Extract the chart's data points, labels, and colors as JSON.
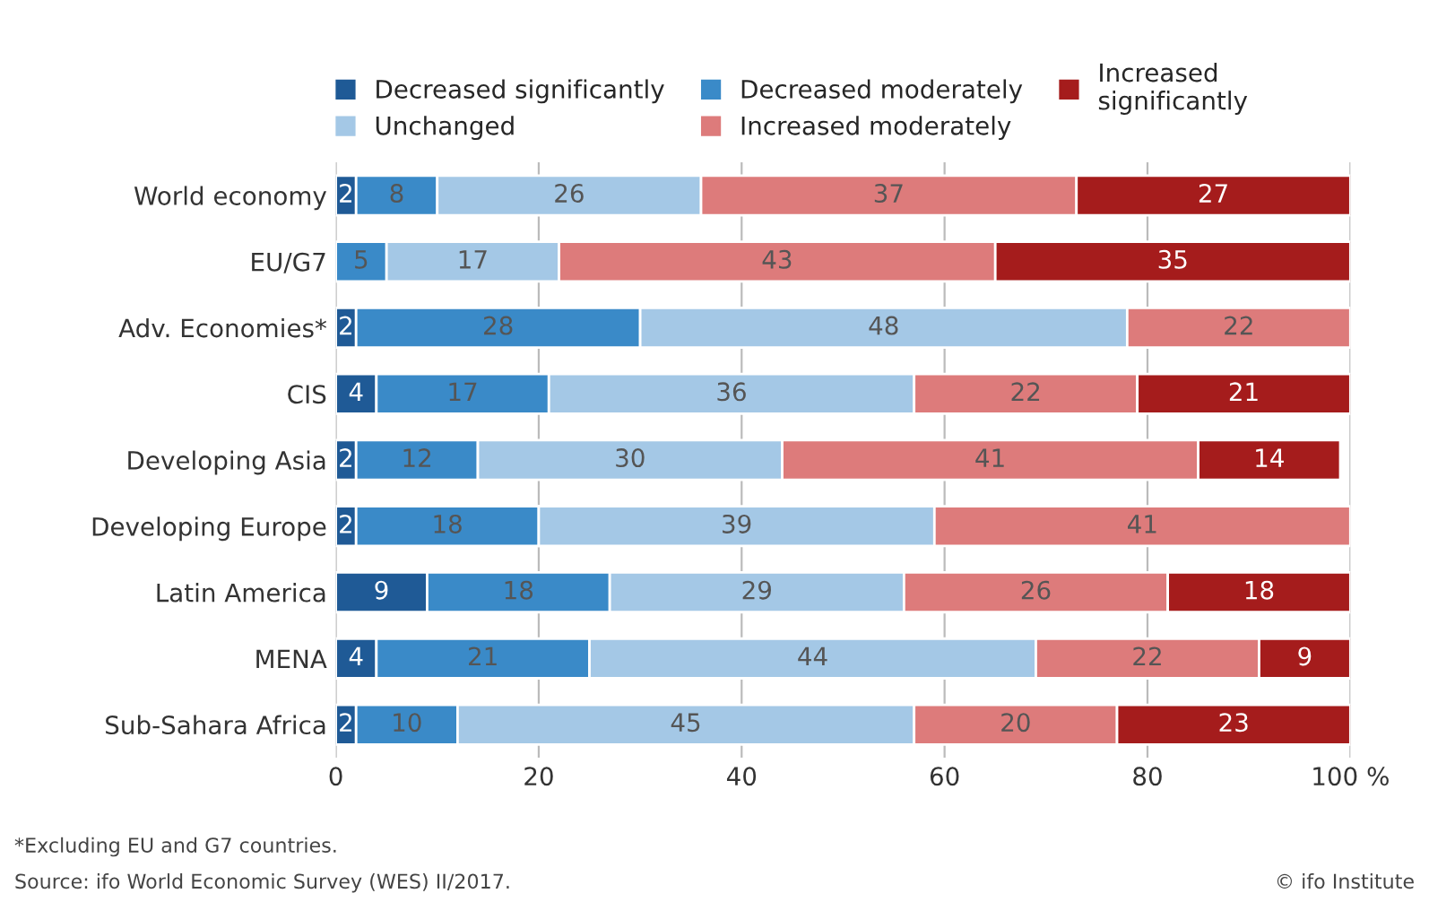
{
  "chart_data": {
    "type": "bar",
    "orientation": "horizontal",
    "stacked": true,
    "data_labels": true,
    "grid": "x",
    "legend": "top",
    "categories": [
      "World economy",
      "EU/G7",
      "Adv. Economies*",
      "CIS",
      "Developing Asia",
      "Developing Europe",
      "Latin America",
      "MENA",
      "Sub-Sahara Africa"
    ],
    "series": [
      {
        "name": "Decreased significantly",
        "color": "#1f5a96",
        "values": [
          2,
          null,
          2,
          4,
          2,
          2,
          9,
          4,
          2
        ]
      },
      {
        "name": "Decreased moderately",
        "color": "#3a8ac8",
        "values": [
          8,
          5,
          28,
          17,
          12,
          18,
          18,
          21,
          10
        ]
      },
      {
        "name": "Unchanged",
        "color": "#a4c8e6",
        "values": [
          26,
          17,
          48,
          36,
          30,
          39,
          29,
          44,
          45
        ]
      },
      {
        "name": "Increased moderately",
        "color": "#dd7b7b",
        "values": [
          37,
          43,
          22,
          22,
          41,
          41,
          26,
          22,
          20
        ]
      },
      {
        "name": "Increased significantly",
        "color": "#a51c1c",
        "values": [
          27,
          35,
          null,
          21,
          14,
          null,
          18,
          9,
          23
        ]
      }
    ],
    "xlim": [
      0,
      100
    ],
    "xticks": [
      0,
      20,
      40,
      60,
      80,
      {
        "value": 100,
        "label": "100 %"
      }
    ],
    "annotations": [
      "*Excluding EU and G7 countries.",
      "Source: ifo World Economic Survey (WES) II/2017.",
      "© ifo Institute"
    ]
  }
}
